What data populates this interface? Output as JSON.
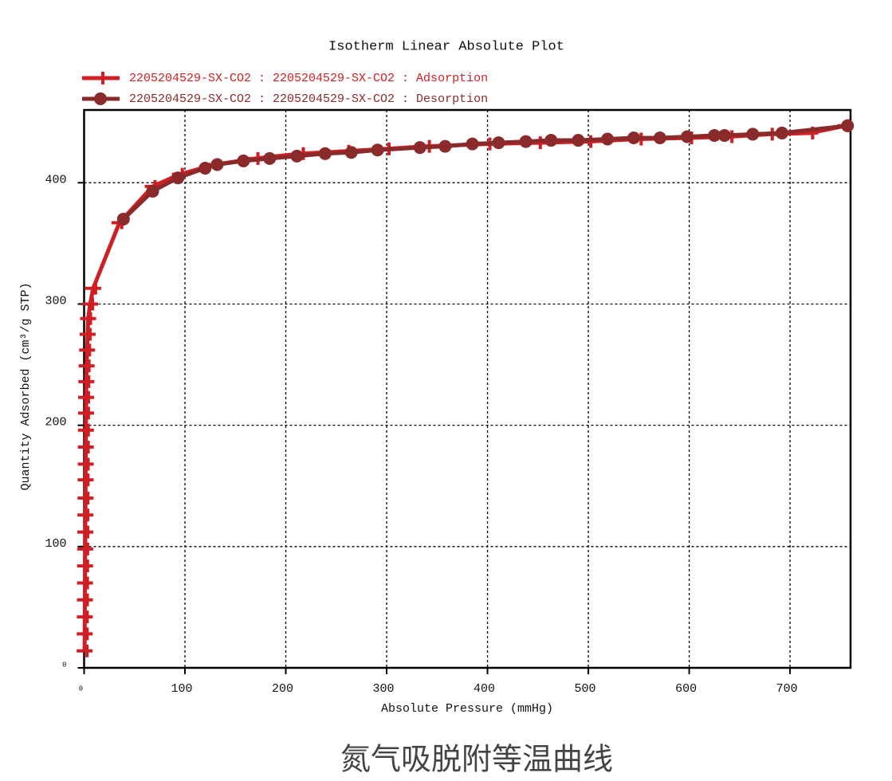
{
  "chart_data": {
    "type": "line",
    "title": "Isotherm Linear Absolute Plot",
    "x_label": "Absolute Pressure (mmHg)",
    "y_label": "Quantity Adsorbed (cm³/g STP)",
    "caption": "氮气吸脱附等温曲线",
    "xlim": [
      0,
      760
    ],
    "ylim": [
      0,
      460
    ],
    "xticks": [
      0,
      100,
      200,
      300,
      400,
      500,
      600,
      700
    ],
    "yticks": [
      0,
      100,
      200,
      300,
      400
    ],
    "grid": true,
    "legend": "top-left",
    "series": [
      {
        "name": "2205204529-SX-CO2 : 2205204529-SX-CO2 : Adsorption",
        "color": "#d01f24",
        "marker": "plus",
        "x": [
          0.5,
          0.6,
          0.7,
          0.8,
          0.9,
          1,
          1.1,
          1.2,
          1.3,
          1.4,
          1.5,
          1.6,
          1.7,
          1.8,
          1.9,
          2,
          2.2,
          2.5,
          3,
          3.5,
          4,
          6,
          9,
          35,
          68,
          95,
          130,
          170,
          215,
          260,
          300,
          340,
          400,
          450,
          500,
          550,
          600,
          640,
          680,
          720,
          755
        ],
        "values": [
          14,
          28,
          42,
          56,
          70,
          84,
          98,
          112,
          126,
          140,
          155,
          168,
          182,
          196,
          210,
          223,
          236,
          249,
          262,
          275,
          288,
          300,
          313,
          367,
          397,
          407,
          415,
          420,
          424,
          426,
          428,
          430,
          432,
          433,
          434,
          436,
          437,
          438,
          440,
          441,
          447
        ]
      },
      {
        "name": "2205204529-SX-CO2 : 2205204529-SX-CO2 : Desorption",
        "color": "#8b2a2a",
        "marker": "circle",
        "x": [
          757,
          692,
          663,
          635,
          625,
          598,
          571,
          545,
          519,
          490,
          463,
          438,
          411,
          385,
          358,
          333,
          291,
          265,
          239,
          211,
          184,
          158,
          132,
          120,
          93,
          68,
          39
        ],
        "values": [
          447,
          441,
          440,
          439,
          439,
          438,
          437,
          437,
          436,
          435,
          435,
          434,
          433,
          432,
          430,
          429,
          427,
          425,
          424,
          422,
          420,
          418,
          415,
          412,
          404,
          393,
          370
        ]
      }
    ]
  }
}
